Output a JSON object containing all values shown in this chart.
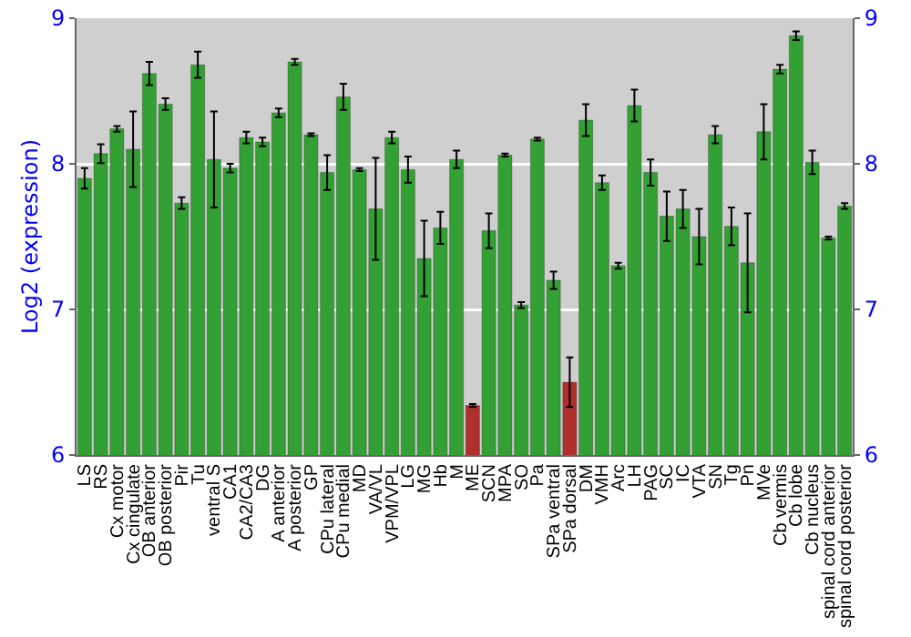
{
  "chart_data": {
    "type": "bar",
    "ylabel": "Log2 (expression)",
    "categories": [
      "LS",
      "RS",
      "Cx motor",
      "Cx cingulate",
      "OB anterior",
      "OB posterior",
      "Pir",
      "Tu",
      "ventral S",
      "CA1",
      "CA2/CA3",
      "DG",
      "A anterior",
      "A posterior",
      "GP",
      "CPu lateral",
      "CPu medial",
      "MD",
      "VA/VL",
      "VPM/VPL",
      "LG",
      "MG",
      "Hb",
      "M",
      "ME",
      "SCN",
      "MPA",
      "SO",
      "Pa",
      "SPa ventral",
      "SPa dorsal",
      "DM",
      "VMH",
      "Arc",
      "LH",
      "PAG",
      "SC",
      "IC",
      "VTA",
      "SN",
      "Tg",
      "Pn",
      "MVe",
      "Cb vermis",
      "Cb lobe",
      "Cb nucleus",
      "spinal cord anterior",
      "spinal cord posterior"
    ],
    "values": [
      7.9,
      8.07,
      8.24,
      8.1,
      8.62,
      8.41,
      7.73,
      8.68,
      8.03,
      7.97,
      8.18,
      8.15,
      8.35,
      8.7,
      8.2,
      7.94,
      8.46,
      7.96,
      7.69,
      8.18,
      7.96,
      7.35,
      7.56,
      8.03,
      6.34,
      7.54,
      8.06,
      7.03,
      8.17,
      7.2,
      6.5,
      8.3,
      7.87,
      7.3,
      8.4,
      7.94,
      7.64,
      7.69,
      7.5,
      8.2,
      7.57,
      7.32,
      8.22,
      8.65,
      8.88,
      8.01,
      7.49,
      7.71
    ],
    "errors": [
      0.07,
      0.065,
      0.02,
      0.26,
      0.08,
      0.04,
      0.04,
      0.09,
      0.33,
      0.03,
      0.04,
      0.03,
      0.03,
      0.02,
      0.01,
      0.12,
      0.09,
      0.01,
      0.35,
      0.04,
      0.09,
      0.26,
      0.11,
      0.06,
      0.01,
      0.12,
      0.01,
      0.02,
      0.01,
      0.06,
      0.17,
      0.11,
      0.05,
      0.02,
      0.11,
      0.09,
      0.17,
      0.13,
      0.19,
      0.06,
      0.13,
      0.34,
      0.19,
      0.03,
      0.03,
      0.08,
      0.01,
      0.02
    ],
    "colors": [
      "#33a033",
      "#33a033",
      "#33a033",
      "#33a033",
      "#33a033",
      "#33a033",
      "#33a033",
      "#33a033",
      "#33a033",
      "#33a033",
      "#33a033",
      "#33a033",
      "#33a033",
      "#33a033",
      "#33a033",
      "#33a033",
      "#33a033",
      "#33a033",
      "#33a033",
      "#33a033",
      "#33a033",
      "#33a033",
      "#33a033",
      "#33a033",
      "#b03030",
      "#33a033",
      "#33a033",
      "#33a033",
      "#33a033",
      "#33a033",
      "#b03030",
      "#33a033",
      "#33a033",
      "#33a033",
      "#33a033",
      "#33a033",
      "#33a033",
      "#33a033",
      "#33a033",
      "#33a033",
      "#33a033",
      "#33a033",
      "#33a033",
      "#33a033",
      "#33a033",
      "#33a033",
      "#33a033",
      "#33a033"
    ],
    "ylim": [
      6,
      9
    ],
    "yticks": [
      6,
      7,
      8,
      9
    ],
    "y2lim": [
      6,
      9
    ],
    "y2ticks": [
      6,
      7,
      8,
      9
    ],
    "grid": "y"
  }
}
